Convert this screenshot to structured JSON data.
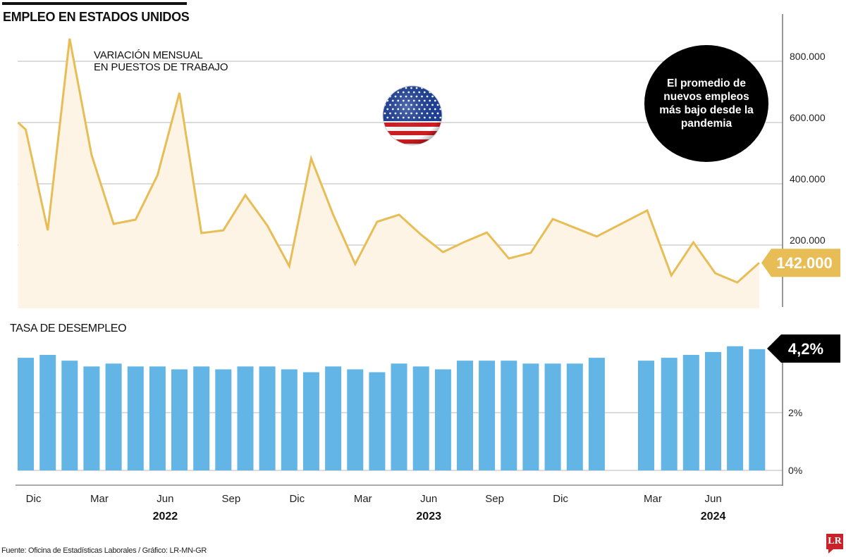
{
  "header": {
    "title": "EMPLEO EN ESTADOS UNIDOS",
    "subtitle_line1": "VARIACIÓN MENSUAL",
    "subtitle_line2": "EN PUESTOS DE TRABAJO",
    "section2_title": "TASA DE DESEMPLEO"
  },
  "callout": {
    "text": "El promedio de nuevos empleos más bajo desde la pandemia",
    "flag_icon": "us-flag-icon"
  },
  "source": "Fuente: Oficina de Estadísticas Laborales / Gráfico: LR-MN-GR",
  "logo": "LR",
  "colors": {
    "line": "#e8bd55",
    "area_fill": "#fdf4e6",
    "bar": "#62b5e5",
    "last_job_label_bg": "#e8bd55",
    "last_rate_label_bg": "#000000",
    "gridline": "#c8c8c8"
  },
  "chart_data": [
    {
      "type": "area",
      "title": "VARIACIÓN MENSUAL EN PUESTOS DE TRABAJO",
      "xlabel": "",
      "ylabel": "",
      "ylim": [
        0,
        900000
      ],
      "yticks": [
        200000,
        400000,
        600000,
        800000
      ],
      "ytick_labels": [
        "200.000",
        "400.000",
        "600.000",
        "800.000"
      ],
      "grid": true,
      "x_index": [
        0.65,
        1,
        2,
        3,
        4,
        5,
        6,
        7,
        8,
        9,
        10,
        11,
        12,
        13,
        14,
        15,
        16,
        17,
        18,
        19,
        20,
        21,
        22,
        23,
        24,
        25,
        27,
        29.3,
        30.4,
        31.4,
        32.4,
        33.4,
        34.4
      ],
      "values": [
        600000,
        577000,
        248000,
        874000,
        494000,
        269000,
        283000,
        428000,
        697000,
        239000,
        248000,
        363000,
        264000,
        131000,
        483000,
        299000,
        138000,
        276000,
        299000,
        234000,
        177000,
        211000,
        241000,
        156000,
        175000,
        285000,
        228000,
        313000,
        101000,
        209000,
        108000,
        78000,
        142000
      ],
      "last_value_label": "142.000"
    },
    {
      "type": "bar",
      "title": "TASA DE DESEMPLEO",
      "ylim": [
        0,
        4.5
      ],
      "yticks": [
        0,
        2
      ],
      "ytick_labels": [
        "0%",
        "2%"
      ],
      "grid": true,
      "slot_index": [
        1,
        2,
        3,
        4,
        5,
        6,
        7,
        8,
        9,
        10,
        11,
        12,
        13,
        14,
        15,
        16,
        17,
        18,
        19,
        20,
        21,
        22,
        23,
        24,
        25,
        26,
        27,
        29.25,
        30.3,
        31.3,
        32.3,
        33.3,
        34.3
      ],
      "values": [
        3.9,
        4.0,
        3.8,
        3.6,
        3.7,
        3.6,
        3.6,
        3.5,
        3.6,
        3.5,
        3.6,
        3.6,
        3.5,
        3.4,
        3.6,
        3.5,
        3.4,
        3.7,
        3.6,
        3.5,
        3.8,
        3.8,
        3.8,
        3.7,
        3.7,
        3.7,
        3.9,
        3.8,
        3.9,
        4.0,
        4.1,
        4.3,
        4.2
      ],
      "last_value_label": "4,2%"
    }
  ],
  "x_axis": {
    "month_labels": [
      {
        "label": "Dic",
        "slot": 1
      },
      {
        "label": "Mar",
        "slot": 4
      },
      {
        "label": "Jun",
        "slot": 7
      },
      {
        "label": "Sep",
        "slot": 10
      },
      {
        "label": "Dic",
        "slot": 13
      },
      {
        "label": "Mar",
        "slot": 16
      },
      {
        "label": "Jun",
        "slot": 19
      },
      {
        "label": "Sep",
        "slot": 22
      },
      {
        "label": "Dic",
        "slot": 25
      },
      {
        "label": "Mar",
        "slot": 29.2
      },
      {
        "label": "Jun",
        "slot": 31.95
      }
    ],
    "year_labels": [
      {
        "label": "2022",
        "slot": 7
      },
      {
        "label": "2023",
        "slot": 19
      },
      {
        "label": "2024",
        "slot": 31.95
      }
    ]
  }
}
